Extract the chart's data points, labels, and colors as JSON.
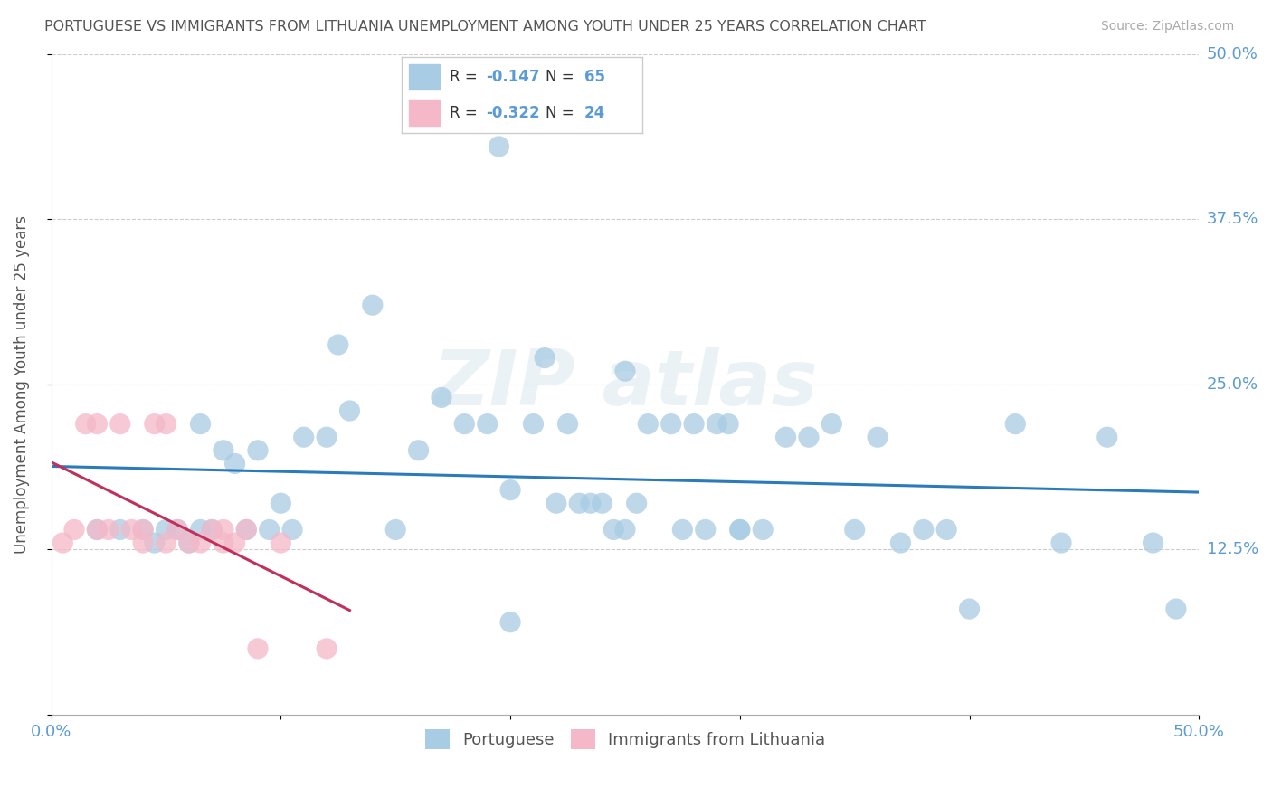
{
  "title": "PORTUGUESE VS IMMIGRANTS FROM LITHUANIA UNEMPLOYMENT AMONG YOUTH UNDER 25 YEARS CORRELATION CHART",
  "source": "Source: ZipAtlas.com",
  "ylabel": "Unemployment Among Youth under 25 years",
  "xlim": [
    0,
    0.5
  ],
  "ylim": [
    0,
    0.5
  ],
  "blue_color": "#a8cce4",
  "pink_color": "#f4b8c8",
  "blue_line_color": "#2b7bba",
  "pink_line_color": "#c0305a",
  "title_color": "#555555",
  "axis_color": "#5b9bd5",
  "portuguese_x": [
    0.02,
    0.03,
    0.04,
    0.045,
    0.05,
    0.055,
    0.06,
    0.065,
    0.065,
    0.07,
    0.075,
    0.08,
    0.085,
    0.09,
    0.095,
    0.1,
    0.105,
    0.11,
    0.12,
    0.125,
    0.13,
    0.14,
    0.15,
    0.16,
    0.17,
    0.18,
    0.19,
    0.195,
    0.2,
    0.21,
    0.215,
    0.22,
    0.225,
    0.23,
    0.235,
    0.24,
    0.245,
    0.25,
    0.255,
    0.26,
    0.27,
    0.275,
    0.28,
    0.285,
    0.29,
    0.295,
    0.3,
    0.31,
    0.32,
    0.33,
    0.34,
    0.35,
    0.36,
    0.37,
    0.38,
    0.39,
    0.4,
    0.42,
    0.44,
    0.46,
    0.48,
    0.49,
    0.25,
    0.3,
    0.2
  ],
  "portuguese_y": [
    0.14,
    0.14,
    0.14,
    0.13,
    0.14,
    0.14,
    0.13,
    0.14,
    0.22,
    0.14,
    0.2,
    0.19,
    0.14,
    0.2,
    0.14,
    0.16,
    0.14,
    0.21,
    0.21,
    0.28,
    0.23,
    0.31,
    0.14,
    0.2,
    0.24,
    0.22,
    0.22,
    0.43,
    0.17,
    0.22,
    0.27,
    0.16,
    0.22,
    0.16,
    0.16,
    0.16,
    0.14,
    0.26,
    0.16,
    0.22,
    0.22,
    0.14,
    0.22,
    0.14,
    0.22,
    0.22,
    0.14,
    0.14,
    0.21,
    0.21,
    0.22,
    0.14,
    0.21,
    0.13,
    0.14,
    0.14,
    0.08,
    0.22,
    0.13,
    0.21,
    0.13,
    0.08,
    0.14,
    0.14,
    0.07
  ],
  "lithuania_x": [
    0.005,
    0.01,
    0.015,
    0.02,
    0.02,
    0.025,
    0.03,
    0.035,
    0.04,
    0.04,
    0.045,
    0.05,
    0.05,
    0.055,
    0.06,
    0.065,
    0.07,
    0.075,
    0.075,
    0.08,
    0.085,
    0.09,
    0.1,
    0.12
  ],
  "lithuania_y": [
    0.13,
    0.14,
    0.22,
    0.22,
    0.14,
    0.14,
    0.22,
    0.14,
    0.14,
    0.13,
    0.22,
    0.13,
    0.22,
    0.14,
    0.13,
    0.13,
    0.14,
    0.14,
    0.13,
    0.13,
    0.14,
    0.05,
    0.13,
    0.05
  ],
  "blue_trendline_x": [
    0.0,
    0.5
  ],
  "blue_trendline_y": [
    0.163,
    0.128
  ],
  "pink_trendline_x": [
    0.0,
    0.13
  ],
  "pink_trendline_y": [
    0.175,
    0.075
  ]
}
